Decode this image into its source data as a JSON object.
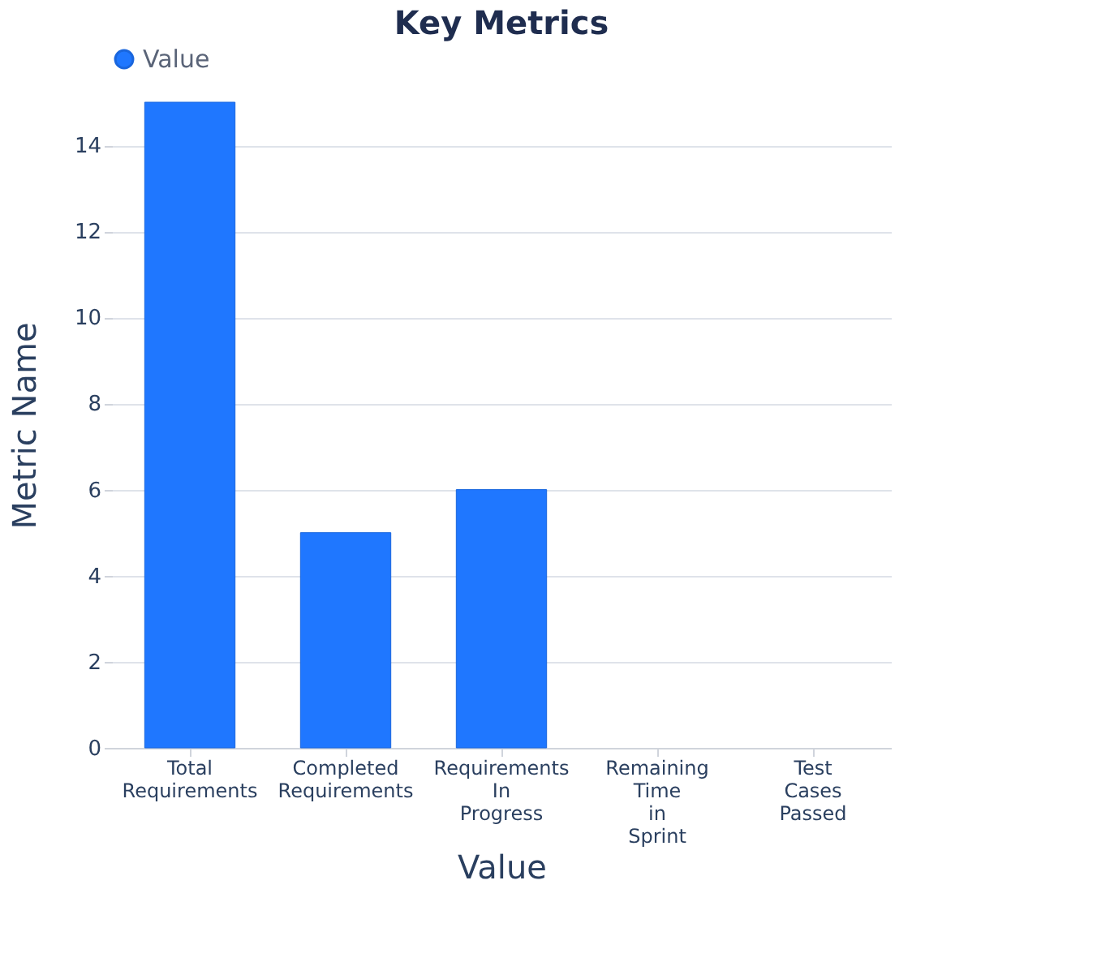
{
  "chart_data": {
    "type": "bar",
    "title": "Key Metrics",
    "categories": [
      "Total Requirements",
      "Completed Requirements",
      "Requirements In Progress",
      "Remaining Time in Sprint",
      "Test Cases Passed"
    ],
    "series": [
      {
        "name": "Value",
        "color": "#1f77ff",
        "values": [
          15,
          5,
          6,
          null,
          null
        ]
      }
    ],
    "xlabel": "Value",
    "ylabel": "Metric Name",
    "ylim": [
      0,
      15
    ],
    "yticks": [
      0,
      2,
      4,
      6,
      8,
      10,
      12,
      14
    ],
    "grid": "y",
    "legend": "top"
  }
}
